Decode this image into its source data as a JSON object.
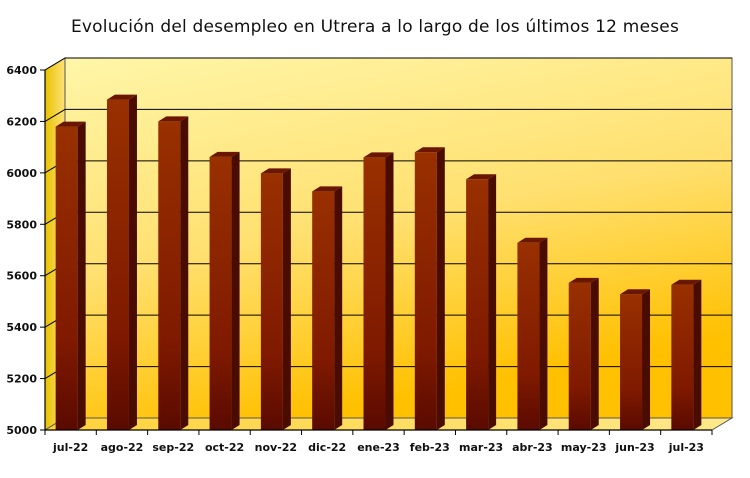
{
  "chart_data": {
    "type": "bar",
    "title": "Evolución del desempleo en Utrera a lo largo de los últimos 12 meses",
    "categories": [
      "jul-22",
      "ago-22",
      "sep-22",
      "oct-22",
      "nov-22",
      "dic-22",
      "ene-23",
      "feb-23",
      "mar-23",
      "abr-23",
      "may-23",
      "jun-23",
      "jul-23"
    ],
    "values": [
      6180,
      6285,
      6200,
      6062,
      5998,
      5928,
      6060,
      6080,
      5975,
      5728,
      5572,
      5528,
      5565
    ],
    "yticks": [
      5000,
      5200,
      5400,
      5600,
      5800,
      6000,
      6200,
      6400
    ],
    "ylim": [
      5000,
      6400
    ],
    "xlabel": "",
    "ylabel": "",
    "grid": true,
    "legend": "none",
    "colors": {
      "bar": "#8b2000",
      "bar_dark": "#4a0c00",
      "wall_top": "#fff4a0",
      "wall_bottom": "#ffc000",
      "grid": "#000000"
    }
  }
}
